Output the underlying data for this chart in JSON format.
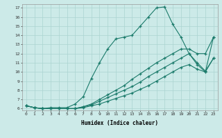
{
  "xlabel": "Humidex (Indice chaleur)",
  "bg_color": "#cceae8",
  "line_color": "#1a7a6a",
  "grid_color": "#aad4d0",
  "xlim": [
    -0.5,
    23.5
  ],
  "ylim": [
    5.8,
    17.4
  ],
  "yticks": [
    6,
    7,
    8,
    9,
    10,
    11,
    12,
    13,
    14,
    15,
    16,
    17
  ],
  "xticks": [
    0,
    1,
    2,
    3,
    4,
    5,
    6,
    7,
    8,
    9,
    10,
    11,
    12,
    13,
    14,
    15,
    16,
    17,
    18,
    19,
    20,
    21,
    22,
    23
  ],
  "series": [
    {
      "x": [
        0,
        1,
        2,
        3,
        4,
        5,
        6,
        7,
        8,
        9,
        10,
        11,
        12,
        13,
        14,
        15,
        16,
        17,
        18,
        19,
        20,
        21,
        22,
        23
      ],
      "y": [
        6.3,
        6.1,
        6.0,
        6.1,
        6.1,
        6.1,
        6.5,
        7.3,
        9.3,
        11.0,
        12.5,
        13.6,
        13.8,
        14.0,
        15.0,
        16.0,
        17.0,
        17.1,
        15.2,
        13.8,
        12.0,
        10.8,
        10.0,
        13.8
      ]
    },
    {
      "x": [
        0,
        1,
        2,
        3,
        4,
        5,
        6,
        7,
        8,
        9,
        10,
        11,
        12,
        13,
        14,
        15,
        16,
        17,
        18,
        19,
        20,
        21,
        22,
        23
      ],
      "y": [
        6.3,
        6.1,
        6.0,
        6.0,
        6.0,
        6.0,
        6.0,
        6.2,
        6.5,
        7.0,
        7.5,
        8.0,
        8.5,
        9.2,
        9.8,
        10.4,
        11.0,
        11.5,
        12.0,
        12.5,
        12.5,
        12.0,
        12.0,
        13.8
      ]
    },
    {
      "x": [
        0,
        1,
        2,
        3,
        4,
        5,
        6,
        7,
        8,
        9,
        10,
        11,
        12,
        13,
        14,
        15,
        16,
        17,
        18,
        19,
        20,
        21,
        22,
        23
      ],
      "y": [
        6.3,
        6.1,
        6.0,
        6.0,
        6.0,
        6.0,
        6.0,
        6.2,
        6.4,
        6.8,
        7.2,
        7.6,
        8.0,
        8.4,
        8.9,
        9.5,
        10.0,
        10.5,
        11.0,
        11.5,
        12.0,
        11.0,
        10.1,
        11.5
      ]
    },
    {
      "x": [
        0,
        1,
        2,
        3,
        4,
        5,
        6,
        7,
        8,
        9,
        10,
        11,
        12,
        13,
        14,
        15,
        16,
        17,
        18,
        19,
        20,
        21,
        22,
        23
      ],
      "y": [
        6.3,
        6.1,
        6.0,
        6.0,
        6.0,
        6.0,
        6.0,
        6.1,
        6.3,
        6.5,
        6.8,
        7.1,
        7.4,
        7.7,
        8.1,
        8.5,
        9.0,
        9.5,
        10.0,
        10.5,
        10.8,
        10.3,
        10.0,
        11.5
      ]
    }
  ]
}
